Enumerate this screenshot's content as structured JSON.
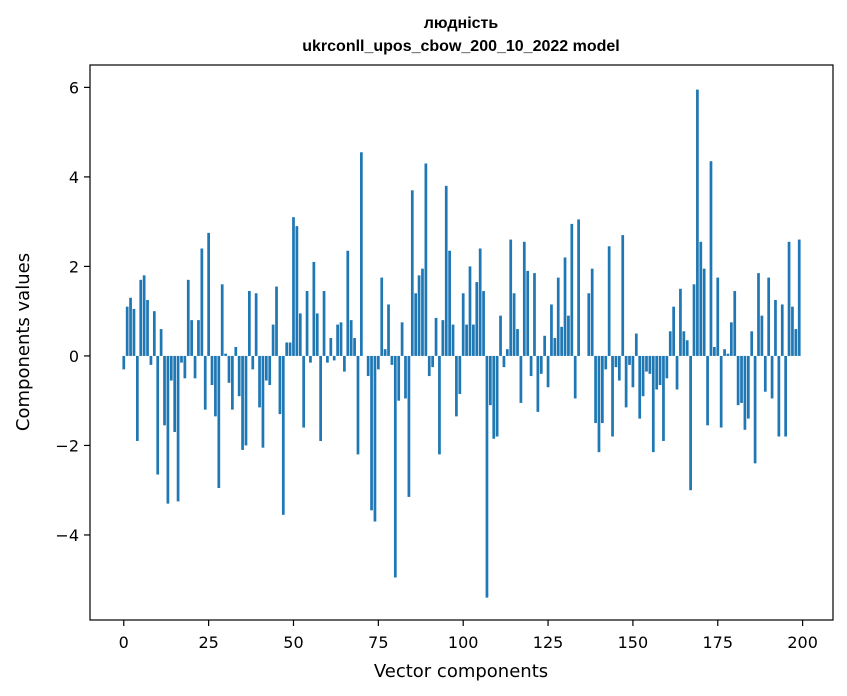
{
  "chart_data": {
    "type": "bar",
    "title": "людність",
    "subtitle": "ukrconll_upos_cbow_200_10_2022 model",
    "xlabel": "Vector components",
    "ylabel": "Components values",
    "xlim": [
      -9.95,
      208.95
    ],
    "ylim": [
      -5.9,
      6.5
    ],
    "xticks": [
      0,
      25,
      50,
      75,
      100,
      125,
      150,
      175,
      200
    ],
    "xtick_labels": [
      "0",
      "25",
      "50",
      "75",
      "100",
      "125",
      "150",
      "175",
      "200"
    ],
    "yticks": [
      -4,
      -2,
      0,
      2,
      4,
      6
    ],
    "ytick_labels": [
      "−4",
      "−2",
      "0",
      "2",
      "4",
      "6"
    ],
    "grid": false,
    "legend": false,
    "bar_color": "#1f77b4",
    "x": [
      0,
      1,
      2,
      3,
      4,
      5,
      6,
      7,
      8,
      9,
      10,
      11,
      12,
      13,
      14,
      15,
      16,
      17,
      18,
      19,
      20,
      21,
      22,
      23,
      24,
      25,
      26,
      27,
      28,
      29,
      30,
      31,
      32,
      33,
      34,
      35,
      36,
      37,
      38,
      39,
      40,
      41,
      42,
      43,
      44,
      45,
      46,
      47,
      48,
      49,
      50,
      51,
      52,
      53,
      54,
      55,
      56,
      57,
      58,
      59,
      60,
      61,
      62,
      63,
      64,
      65,
      66,
      67,
      68,
      69,
      70,
      71,
      72,
      73,
      74,
      75,
      76,
      77,
      78,
      79,
      80,
      81,
      82,
      83,
      84,
      85,
      86,
      87,
      88,
      89,
      90,
      91,
      92,
      93,
      94,
      95,
      96,
      97,
      98,
      99,
      100,
      101,
      102,
      103,
      104,
      105,
      106,
      107,
      108,
      109,
      110,
      111,
      112,
      113,
      114,
      115,
      116,
      117,
      118,
      119,
      120,
      121,
      122,
      123,
      124,
      125,
      126,
      127,
      128,
      129,
      130,
      131,
      132,
      133,
      134,
      135,
      136,
      137,
      138,
      139,
      140,
      141,
      142,
      143,
      144,
      145,
      146,
      147,
      148,
      149,
      150,
      151,
      152,
      153,
      154,
      155,
      156,
      157,
      158,
      159,
      160,
      161,
      162,
      163,
      164,
      165,
      166,
      167,
      168,
      169,
      170,
      171,
      172,
      173,
      174,
      175,
      176,
      177,
      178,
      179,
      180,
      181,
      182,
      183,
      184,
      185,
      186,
      187,
      188,
      189,
      190,
      191,
      192,
      193,
      194,
      195,
      196,
      197,
      198,
      199
    ],
    "values": [
      -0.3,
      1.1,
      1.3,
      1.05,
      -1.9,
      1.7,
      1.8,
      1.25,
      -0.2,
      1.0,
      -2.65,
      0.6,
      -1.55,
      -3.3,
      -0.55,
      -1.7,
      -3.25,
      -0.15,
      -0.5,
      1.7,
      0.8,
      -0.5,
      0.8,
      2.4,
      -1.2,
      2.75,
      -0.65,
      -1.35,
      -2.95,
      1.6,
      0.05,
      -0.6,
      -1.2,
      0.2,
      -0.9,
      -2.1,
      -2.0,
      1.45,
      -0.3,
      1.4,
      -1.15,
      -2.05,
      -0.55,
      -0.65,
      0.7,
      1.55,
      -1.3,
      -3.55,
      0.3,
      0.3,
      3.1,
      2.9,
      0.95,
      -1.6,
      1.45,
      -0.15,
      2.1,
      0.95,
      -1.9,
      1.45,
      -0.15,
      0.4,
      -0.1,
      0.7,
      0.75,
      -0.35,
      2.35,
      0.8,
      0.4,
      -2.2,
      4.55,
      0.0,
      -0.45,
      -3.45,
      -3.7,
      -0.3,
      1.75,
      0.15,
      1.15,
      -0.2,
      -4.95,
      -1.0,
      0.75,
      -0.95,
      -3.15,
      3.7,
      1.4,
      1.8,
      1.95,
      4.3,
      -0.45,
      -0.25,
      0.85,
      -2.2,
      0.8,
      3.8,
      2.35,
      0.7,
      -1.35,
      -0.85,
      1.4,
      0.7,
      2.0,
      0.7,
      1.65,
      2.4,
      1.45,
      -5.4,
      -1.1,
      -1.85,
      -1.8,
      0.9,
      -0.25,
      0.15,
      2.6,
      1.4,
      0.6,
      -1.05,
      2.55,
      1.9,
      -0.45,
      1.85,
      -1.25,
      -0.4,
      0.45,
      -0.7,
      1.15,
      0.4,
      1.75,
      0.65,
      2.2,
      0.9,
      2.95,
      -0.95,
      3.05,
      0.0,
      0.0,
      1.4,
      1.95,
      -1.5,
      -2.15,
      -1.5,
      -0.3,
      2.45,
      -1.8,
      -0.25,
      -0.55,
      2.7,
      -1.15,
      -0.2,
      -0.7,
      0.5,
      -1.4,
      -0.9,
      -0.35,
      -0.4,
      -2.15,
      -0.75,
      -0.65,
      -1.9,
      -0.5,
      0.55,
      1.1,
      -0.75,
      1.5,
      0.55,
      0.35,
      -3.0,
      1.6,
      5.95,
      2.55,
      1.95,
      -1.55,
      4.35,
      0.2,
      1.75,
      -1.6,
      0.15,
      0.05,
      0.75,
      1.45,
      -1.1,
      -1.05,
      -1.65,
      -1.4,
      0.55,
      -2.4,
      1.85,
      0.9,
      -0.8,
      1.75,
      -0.95,
      1.25,
      -1.8,
      1.15,
      -1.8,
      2.55,
      1.1,
      0.6,
      2.6
    ]
  }
}
